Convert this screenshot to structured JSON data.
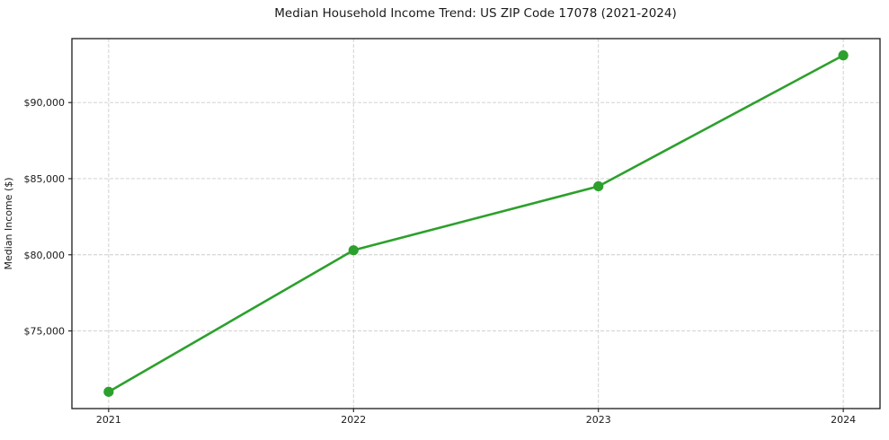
{
  "figure": {
    "background": "#ffffff",
    "spine_color": "#1a1a1a",
    "text_color": "#1a1a1a"
  },
  "chart_data": {
    "type": "line",
    "title": "Median Household Income Trend: US ZIP Code 17078 (2021-2024)",
    "xlabel": "",
    "ylabel": "Median Income ($)",
    "x": [
      2021,
      2022,
      2023,
      2024
    ],
    "x_tick_labels": [
      "2021",
      "2022",
      "2023",
      "2024"
    ],
    "series": [
      {
        "name": "Median Household Income",
        "values": [
          71000,
          80300,
          84500,
          93100
        ],
        "color": "#2ca02c",
        "marker": "o"
      }
    ],
    "y_ticks": [
      75000,
      80000,
      85000,
      90000
    ],
    "y_tick_labels": [
      "$75,000",
      "$80,000",
      "$85,000",
      "$90,000"
    ],
    "xlim": [
      2020.85,
      2024.15
    ],
    "ylim": [
      69900,
      94200
    ],
    "grid": true,
    "grid_style": "dashed",
    "grid_color": "#cccccc",
    "legend": "none"
  }
}
